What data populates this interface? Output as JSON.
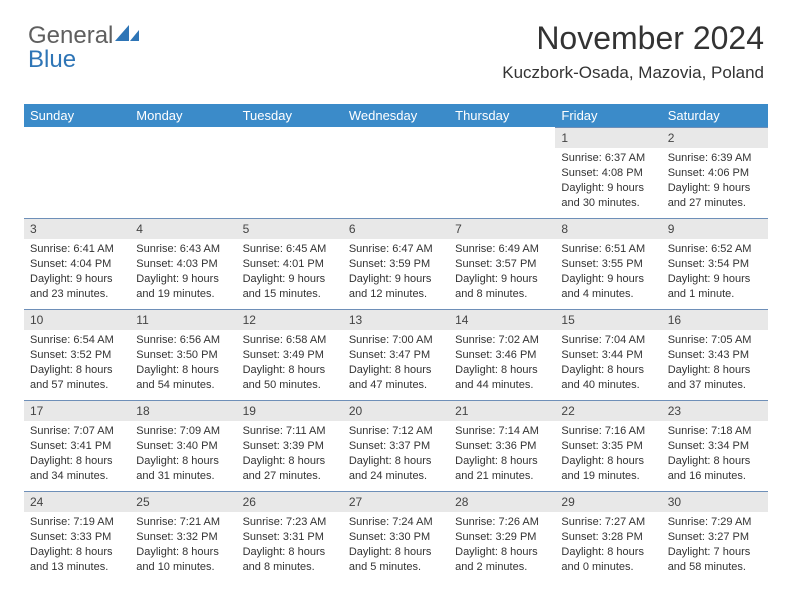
{
  "logo": {
    "part1": "General",
    "part2": "Blue"
  },
  "title": "November 2024",
  "location": "Kuczbork-Osada, Mazovia, Poland",
  "colors": {
    "header_bg": "#3b8bc9",
    "header_text": "#ffffff",
    "daynum_bg": "#e8e8e8",
    "border": "#6e8fb8",
    "logo_gray": "#5f5f5f",
    "logo_blue": "#2e75b6"
  },
  "days_of_week": [
    "Sunday",
    "Monday",
    "Tuesday",
    "Wednesday",
    "Thursday",
    "Friday",
    "Saturday"
  ],
  "weeks": [
    [
      null,
      null,
      null,
      null,
      null,
      {
        "n": "1",
        "sr": "6:37 AM",
        "ss": "4:08 PM",
        "dl": "9 hours and 30 minutes."
      },
      {
        "n": "2",
        "sr": "6:39 AM",
        "ss": "4:06 PM",
        "dl": "9 hours and 27 minutes."
      }
    ],
    [
      {
        "n": "3",
        "sr": "6:41 AM",
        "ss": "4:04 PM",
        "dl": "9 hours and 23 minutes."
      },
      {
        "n": "4",
        "sr": "6:43 AM",
        "ss": "4:03 PM",
        "dl": "9 hours and 19 minutes."
      },
      {
        "n": "5",
        "sr": "6:45 AM",
        "ss": "4:01 PM",
        "dl": "9 hours and 15 minutes."
      },
      {
        "n": "6",
        "sr": "6:47 AM",
        "ss": "3:59 PM",
        "dl": "9 hours and 12 minutes."
      },
      {
        "n": "7",
        "sr": "6:49 AM",
        "ss": "3:57 PM",
        "dl": "9 hours and 8 minutes."
      },
      {
        "n": "8",
        "sr": "6:51 AM",
        "ss": "3:55 PM",
        "dl": "9 hours and 4 minutes."
      },
      {
        "n": "9",
        "sr": "6:52 AM",
        "ss": "3:54 PM",
        "dl": "9 hours and 1 minute."
      }
    ],
    [
      {
        "n": "10",
        "sr": "6:54 AM",
        "ss": "3:52 PM",
        "dl": "8 hours and 57 minutes."
      },
      {
        "n": "11",
        "sr": "6:56 AM",
        "ss": "3:50 PM",
        "dl": "8 hours and 54 minutes."
      },
      {
        "n": "12",
        "sr": "6:58 AM",
        "ss": "3:49 PM",
        "dl": "8 hours and 50 minutes."
      },
      {
        "n": "13",
        "sr": "7:00 AM",
        "ss": "3:47 PM",
        "dl": "8 hours and 47 minutes."
      },
      {
        "n": "14",
        "sr": "7:02 AM",
        "ss": "3:46 PM",
        "dl": "8 hours and 44 minutes."
      },
      {
        "n": "15",
        "sr": "7:04 AM",
        "ss": "3:44 PM",
        "dl": "8 hours and 40 minutes."
      },
      {
        "n": "16",
        "sr": "7:05 AM",
        "ss": "3:43 PM",
        "dl": "8 hours and 37 minutes."
      }
    ],
    [
      {
        "n": "17",
        "sr": "7:07 AM",
        "ss": "3:41 PM",
        "dl": "8 hours and 34 minutes."
      },
      {
        "n": "18",
        "sr": "7:09 AM",
        "ss": "3:40 PM",
        "dl": "8 hours and 31 minutes."
      },
      {
        "n": "19",
        "sr": "7:11 AM",
        "ss": "3:39 PM",
        "dl": "8 hours and 27 minutes."
      },
      {
        "n": "20",
        "sr": "7:12 AM",
        "ss": "3:37 PM",
        "dl": "8 hours and 24 minutes."
      },
      {
        "n": "21",
        "sr": "7:14 AM",
        "ss": "3:36 PM",
        "dl": "8 hours and 21 minutes."
      },
      {
        "n": "22",
        "sr": "7:16 AM",
        "ss": "3:35 PM",
        "dl": "8 hours and 19 minutes."
      },
      {
        "n": "23",
        "sr": "7:18 AM",
        "ss": "3:34 PM",
        "dl": "8 hours and 16 minutes."
      }
    ],
    [
      {
        "n": "24",
        "sr": "7:19 AM",
        "ss": "3:33 PM",
        "dl": "8 hours and 13 minutes."
      },
      {
        "n": "25",
        "sr": "7:21 AM",
        "ss": "3:32 PM",
        "dl": "8 hours and 10 minutes."
      },
      {
        "n": "26",
        "sr": "7:23 AM",
        "ss": "3:31 PM",
        "dl": "8 hours and 8 minutes."
      },
      {
        "n": "27",
        "sr": "7:24 AM",
        "ss": "3:30 PM",
        "dl": "8 hours and 5 minutes."
      },
      {
        "n": "28",
        "sr": "7:26 AM",
        "ss": "3:29 PM",
        "dl": "8 hours and 2 minutes."
      },
      {
        "n": "29",
        "sr": "7:27 AM",
        "ss": "3:28 PM",
        "dl": "8 hours and 0 minutes."
      },
      {
        "n": "30",
        "sr": "7:29 AM",
        "ss": "3:27 PM",
        "dl": "7 hours and 58 minutes."
      }
    ]
  ],
  "labels": {
    "sunrise": "Sunrise: ",
    "sunset": "Sunset: ",
    "daylight": "Daylight: "
  }
}
